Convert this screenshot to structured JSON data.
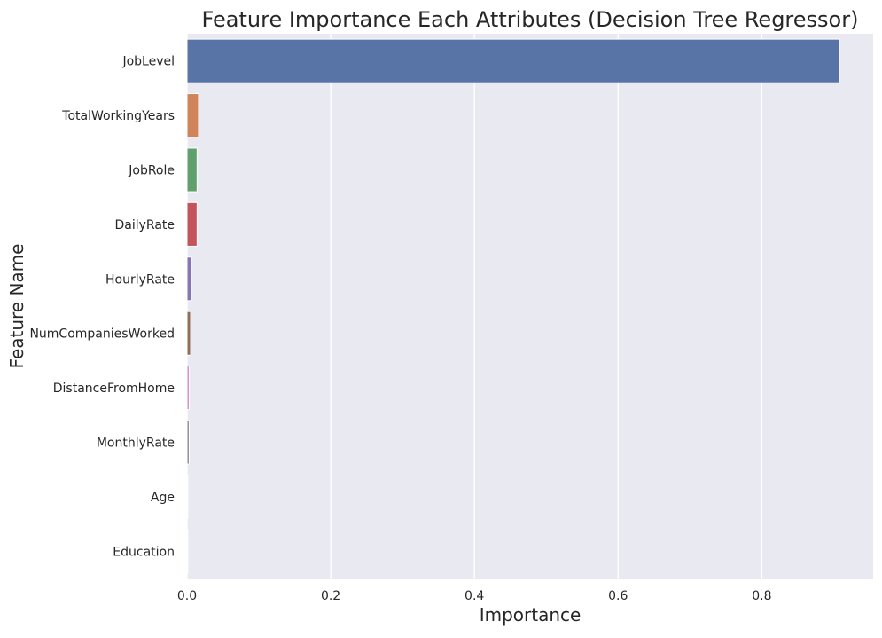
{
  "chart_data": {
    "type": "bar",
    "orientation": "horizontal",
    "title": "Feature Importance Each Attributes (Decision Tree Regressor)",
    "xlabel": "Importance",
    "ylabel": "Feature Name",
    "categories": [
      "JobLevel",
      "TotalWorkingYears",
      "JobRole",
      "DailyRate",
      "HourlyRate",
      "NumCompaniesWorked",
      "DistanceFromHome",
      "MonthlyRate",
      "Age",
      "Education"
    ],
    "values": [
      0.908,
      0.016,
      0.014,
      0.014,
      0.006,
      0.005,
      0.003,
      0.003,
      0.001,
      0.001
    ],
    "colors": [
      "#5874a6",
      "#d0845a",
      "#5fa06c",
      "#c3545b",
      "#8676b1",
      "#8f6e5a",
      "#d58dc4",
      "#8c8c8c",
      "#c9b97c",
      "#5eb7c8"
    ],
    "xlim": [
      0,
      0.955
    ],
    "xticks": [
      0.0,
      0.2,
      0.4,
      0.6,
      0.8
    ],
    "xtick_labels": [
      "0.0",
      "0.2",
      "0.4",
      "0.6",
      "0.8"
    ],
    "grid": true,
    "background_color": "#e9e9f1",
    "grid_color": "#ffffff"
  }
}
